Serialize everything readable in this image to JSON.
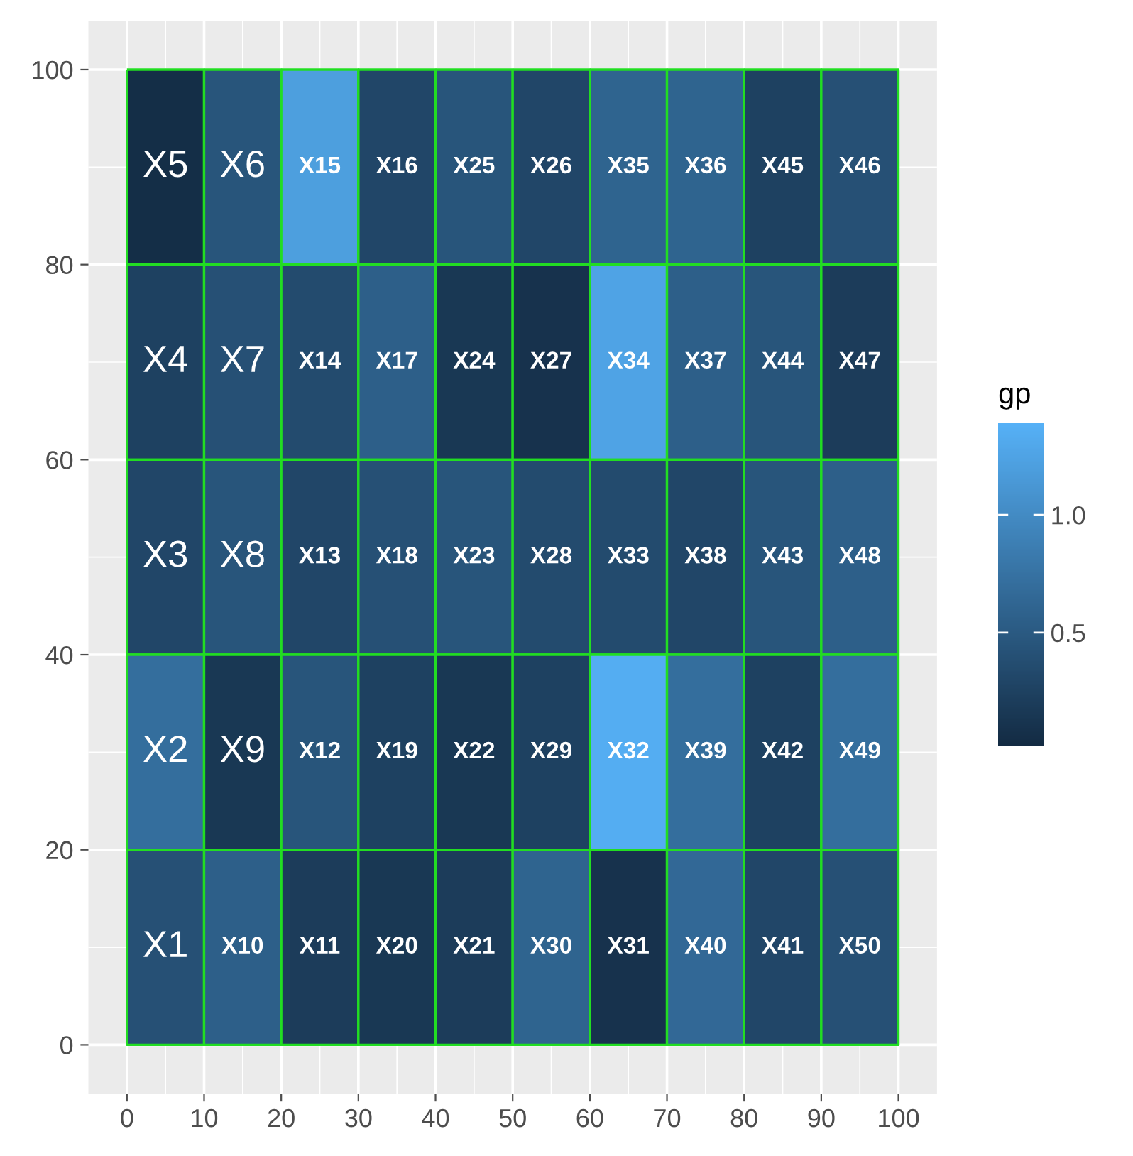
{
  "chart_data": {
    "type": "heatmap",
    "x": [
      5,
      15,
      25,
      35,
      45,
      55,
      65,
      75,
      85,
      95
    ],
    "y": [
      90,
      70,
      50,
      30,
      10
    ],
    "cells": [
      [
        0.05,
        0.45,
        1.2,
        0.3,
        0.45,
        0.3,
        0.6,
        0.6,
        0.25,
        0.4
      ],
      [
        0.25,
        0.4,
        0.35,
        0.55,
        0.15,
        0.1,
        1.25,
        0.55,
        0.45,
        0.2
      ],
      [
        0.3,
        0.45,
        0.3,
        0.4,
        0.45,
        0.35,
        0.35,
        0.3,
        0.45,
        0.55
      ],
      [
        0.7,
        0.15,
        0.45,
        0.25,
        0.15,
        0.25,
        1.35,
        0.7,
        0.25,
        0.7
      ],
      [
        0.4,
        0.55,
        0.2,
        0.15,
        0.2,
        0.6,
        0.1,
        0.65,
        0.3,
        0.4
      ]
    ],
    "cell_labels": [
      [
        "X5",
        "X6",
        "X15",
        "X16",
        "X25",
        "X26",
        "X35",
        "X36",
        "X45",
        "X46"
      ],
      [
        "X4",
        "X7",
        "X14",
        "X17",
        "X24",
        "X27",
        "X34",
        "X37",
        "X44",
        "X47"
      ],
      [
        "X3",
        "X8",
        "X13",
        "X18",
        "X23",
        "X28",
        "X33",
        "X38",
        "X43",
        "X48"
      ],
      [
        "X2",
        "X9",
        "X12",
        "X19",
        "X22",
        "X29",
        "X32",
        "X39",
        "X42",
        "X49"
      ],
      [
        "X1",
        "X10",
        "X11",
        "X20",
        "X21",
        "X30",
        "X31",
        "X40",
        "X41",
        "X50"
      ]
    ],
    "clabel": "gp",
    "clim": [
      0.02,
      1.39
    ],
    "cticks": [
      0.5,
      {
        "value": 1.0,
        "label": "1.0"
      }
    ],
    "colors": [
      "#132b43",
      "#56b1f7"
    ],
    "color": "#22dd22",
    "xlim": [
      -5,
      105
    ],
    "xticks": [
      0,
      10,
      20,
      30,
      40,
      50,
      60,
      70,
      80,
      90,
      100
    ],
    "ylim": [
      -5,
      105
    ],
    "yticks": [
      0,
      20,
      40,
      60,
      80,
      100
    ],
    "grid": true
  }
}
